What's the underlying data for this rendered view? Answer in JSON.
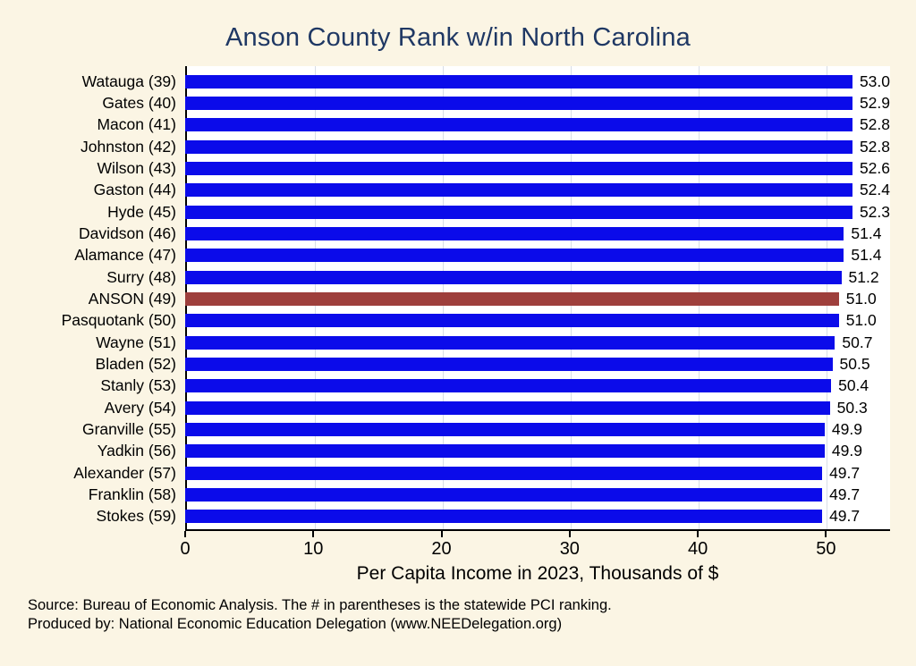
{
  "chart_data": {
    "type": "bar",
    "orientation": "horizontal",
    "title": "Anson County Rank w/in North Carolina",
    "xlabel": "Per Capita Income in 2023, Thousands of $",
    "categories": [
      "Watauga (39)",
      "Gates (40)",
      "Macon (41)",
      "Johnston (42)",
      "Wilson (43)",
      "Gaston (44)",
      "Hyde (45)",
      "Davidson (46)",
      "Alamance (47)",
      "Surry (48)",
      "ANSON (49)",
      "Pasquotank (50)",
      "Wayne (51)",
      "Bladen (52)",
      "Stanly (53)",
      "Avery (54)",
      "Granville (55)",
      "Yadkin (56)",
      "Alexander (57)",
      "Franklin (58)",
      "Stokes (59)"
    ],
    "values": [
      53.0,
      52.9,
      52.8,
      52.8,
      52.6,
      52.4,
      52.3,
      51.4,
      51.4,
      51.2,
      51.0,
      51.0,
      50.7,
      50.5,
      50.4,
      50.3,
      49.9,
      49.9,
      49.7,
      49.7,
      49.7
    ],
    "highlight_index": 10,
    "highlight_category": "ANSON (49)",
    "bar_color": "#0b0bea",
    "highlight_color": "#9e3f3c",
    "xticks": [
      0,
      10,
      20,
      30,
      40,
      50
    ],
    "xlim": [
      0,
      55
    ],
    "grid": true,
    "legend": "none"
  },
  "colors": {
    "background": "#fbf5e4",
    "plot_background": "#ffffff",
    "title": "#1f3864",
    "gridline": "#d8dde6",
    "axis": "#000000"
  },
  "footer": {
    "line1": "Source: Bureau of Economic Analysis. The # in parentheses is the statewide PCI ranking.",
    "line2": "Produced by: National Economic Education Delegation (www.NEEDelegation.org)"
  }
}
